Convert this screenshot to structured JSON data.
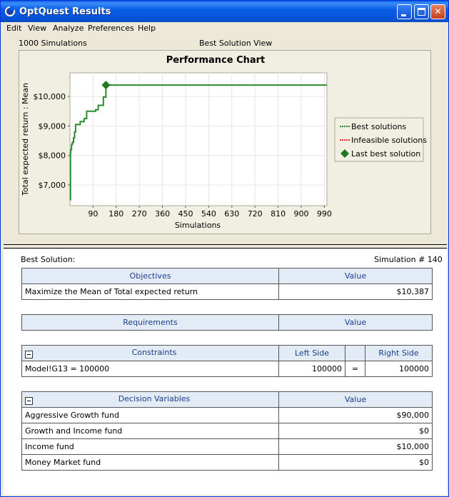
{
  "window": {
    "title": "OptQuest Results"
  },
  "menu": [
    "Edit",
    "View",
    "Analyze",
    "Preferences",
    "Help"
  ],
  "header": {
    "simulations_label": "1000 Simulations",
    "view_label": "Best Solution View"
  },
  "chart_data": {
    "type": "line",
    "title": "Performance Chart",
    "xlabel": "Simulations",
    "ylabel": "Total expected return : Mean",
    "xlim": [
      0,
      1000
    ],
    "ylim": [
      6300,
      10800
    ],
    "x_ticks": [
      90,
      180,
      270,
      360,
      450,
      540,
      630,
      720,
      810,
      900,
      990
    ],
    "x_tick_labels": [
      "90",
      "180",
      "270",
      "360",
      "450",
      "540",
      "630",
      "720",
      "810",
      "900",
      "990"
    ],
    "y_ticks": [
      7000,
      8000,
      9000,
      10000
    ],
    "y_tick_labels": [
      "$7,000",
      "$8,000",
      "$9,000",
      "$10,000"
    ],
    "legend_position": "right",
    "legend": [
      "Best solutions",
      "Infeasible solutions",
      "Last best solution"
    ],
    "series": [
      {
        "name": "Best solutions",
        "x": [
          1,
          2,
          3,
          6,
          8,
          10,
          14,
          18,
          22,
          40,
          55,
          65,
          100,
          110,
          130,
          140,
          1000
        ],
        "y": [
          6500,
          8100,
          8200,
          8350,
          8400,
          8450,
          8600,
          8800,
          9050,
          9150,
          9250,
          9500,
          9550,
          9700,
          9980,
          10387,
          10387
        ]
      }
    ],
    "markers": [
      {
        "name": "Last best solution",
        "x": 140,
        "y": 10387
      }
    ],
    "colors": {
      "best": "#2b8a2b",
      "infeasible": "#e03030",
      "last_best": "#1e7a1e"
    }
  },
  "best_solution": {
    "label": "Best Solution:",
    "sim_label": "Simulation # 140"
  },
  "objectives": {
    "headers": [
      "Objectives",
      "Value"
    ],
    "rows": [
      [
        "Maximize the Mean of Total expected return",
        "$10,387"
      ]
    ]
  },
  "requirements": {
    "headers": [
      "Requirements",
      "Value"
    ]
  },
  "constraints": {
    "headers": [
      "Constraints",
      "Left Side",
      "Right Side"
    ],
    "rows": [
      [
        "Model!G13 = 100000",
        "100000",
        "=",
        "100000"
      ]
    ]
  },
  "decision_variables": {
    "headers": [
      "Decision Variables",
      "Value"
    ],
    "rows": [
      [
        "Aggressive Growth fund",
        "$90,000"
      ],
      [
        "Growth and Income fund",
        "$0"
      ],
      [
        "Income fund",
        "$10,000"
      ],
      [
        "Money Market fund",
        "$0"
      ]
    ]
  }
}
